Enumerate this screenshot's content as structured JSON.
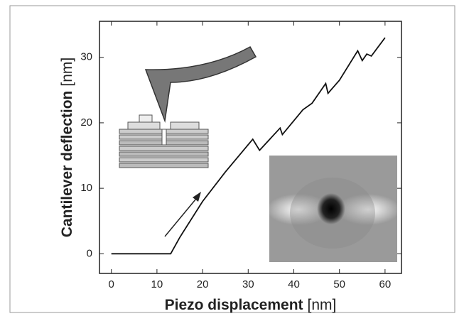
{
  "chart_data": {
    "type": "line",
    "x_label": "Piezo displacement",
    "x_unit": "[nm]",
    "y_label": "Cantilever deflection",
    "y_unit": "[nm]",
    "x": [
      0,
      5,
      10,
      13,
      15,
      20,
      25,
      31,
      32.5,
      37,
      37.5,
      42,
      44,
      47,
      47.5,
      50,
      54,
      55,
      56,
      57,
      60
    ],
    "values": [
      0,
      0,
      0,
      0,
      2.5,
      8,
      12.5,
      17.5,
      15.8,
      19.2,
      18.2,
      22,
      23,
      26,
      24.5,
      26.5,
      31,
      29.5,
      30.5,
      30.2,
      33
    ],
    "color": "#111111",
    "xlim": [
      -2.6,
      63.6
    ],
    "ylim": [
      -3,
      35.5
    ],
    "xticks": [
      0,
      10,
      20,
      30,
      40,
      50,
      60
    ],
    "yticks": [
      0,
      10,
      20,
      30
    ]
  }
}
